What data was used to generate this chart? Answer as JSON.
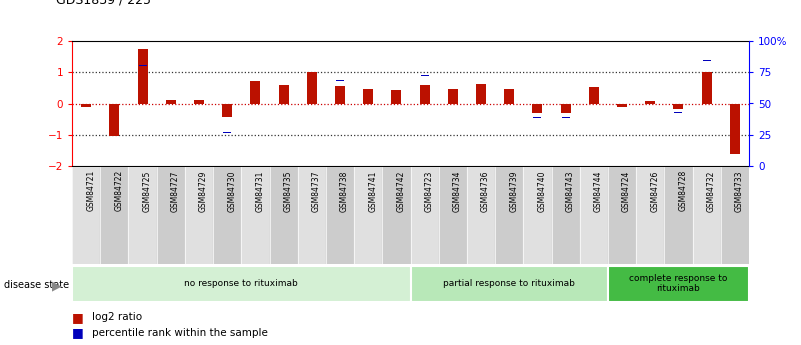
{
  "title": "GDS1839 / 225",
  "samples": [
    "GSM84721",
    "GSM84722",
    "GSM84725",
    "GSM84727",
    "GSM84729",
    "GSM84730",
    "GSM84731",
    "GSM84735",
    "GSM84737",
    "GSM84738",
    "GSM84741",
    "GSM84742",
    "GSM84723",
    "GSM84734",
    "GSM84736",
    "GSM84739",
    "GSM84740",
    "GSM84743",
    "GSM84744",
    "GSM84724",
    "GSM84726",
    "GSM84728",
    "GSM84732",
    "GSM84733"
  ],
  "log2_ratio": [
    -0.12,
    -1.05,
    1.75,
    0.12,
    0.12,
    -0.45,
    0.72,
    0.58,
    1.02,
    0.55,
    0.48,
    0.42,
    0.58,
    0.48,
    0.62,
    0.47,
    -0.32,
    -0.32,
    0.52,
    -0.12,
    0.08,
    -0.18,
    1.0,
    -1.62
  ],
  "percentile": [
    32,
    52,
    84,
    58,
    56,
    30,
    74,
    70,
    82,
    72,
    68,
    70,
    76,
    78,
    74,
    74,
    42,
    42,
    70,
    48,
    64,
    46,
    88,
    12
  ],
  "groups": [
    {
      "label": "no response to rituximab",
      "start": 0,
      "end": 12,
      "color": "#d4f0d4"
    },
    {
      "label": "partial response to rituximab",
      "start": 12,
      "end": 19,
      "color": "#b8e8b8"
    },
    {
      "label": "complete response to\nrituximab",
      "start": 19,
      "end": 24,
      "color": "#44bb44"
    }
  ],
  "ylim_left": [
    -2,
    2
  ],
  "ylim_right": [
    0,
    100
  ],
  "bar_color_red": "#bb1100",
  "bar_color_blue": "#0000bb",
  "dotted_line_color": "#333333",
  "zero_line_color": "#cc0000",
  "background_color": "#ffffff"
}
